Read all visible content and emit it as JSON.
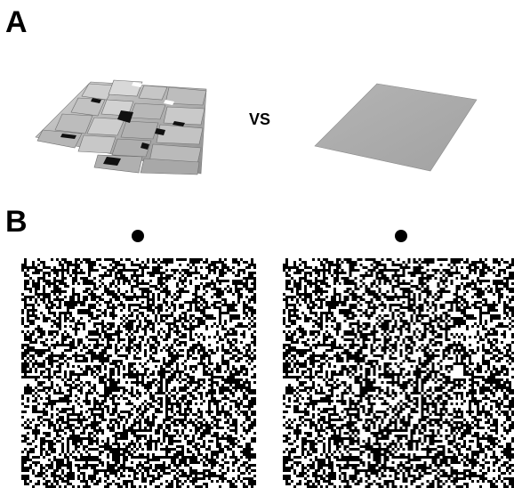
{
  "panels": {
    "a": {
      "label": "A",
      "comparison_text": "VS"
    },
    "b": {
      "label": "B"
    }
  },
  "colors": {
    "surface_gray": "#a8a8a8",
    "surface_light": "#c4c4c4",
    "surface_dark": "#7a7a7a",
    "shadow": "#111111",
    "dot": "#000000",
    "background": "#ffffff"
  },
  "icons": {
    "fixation": "filled-circle"
  }
}
